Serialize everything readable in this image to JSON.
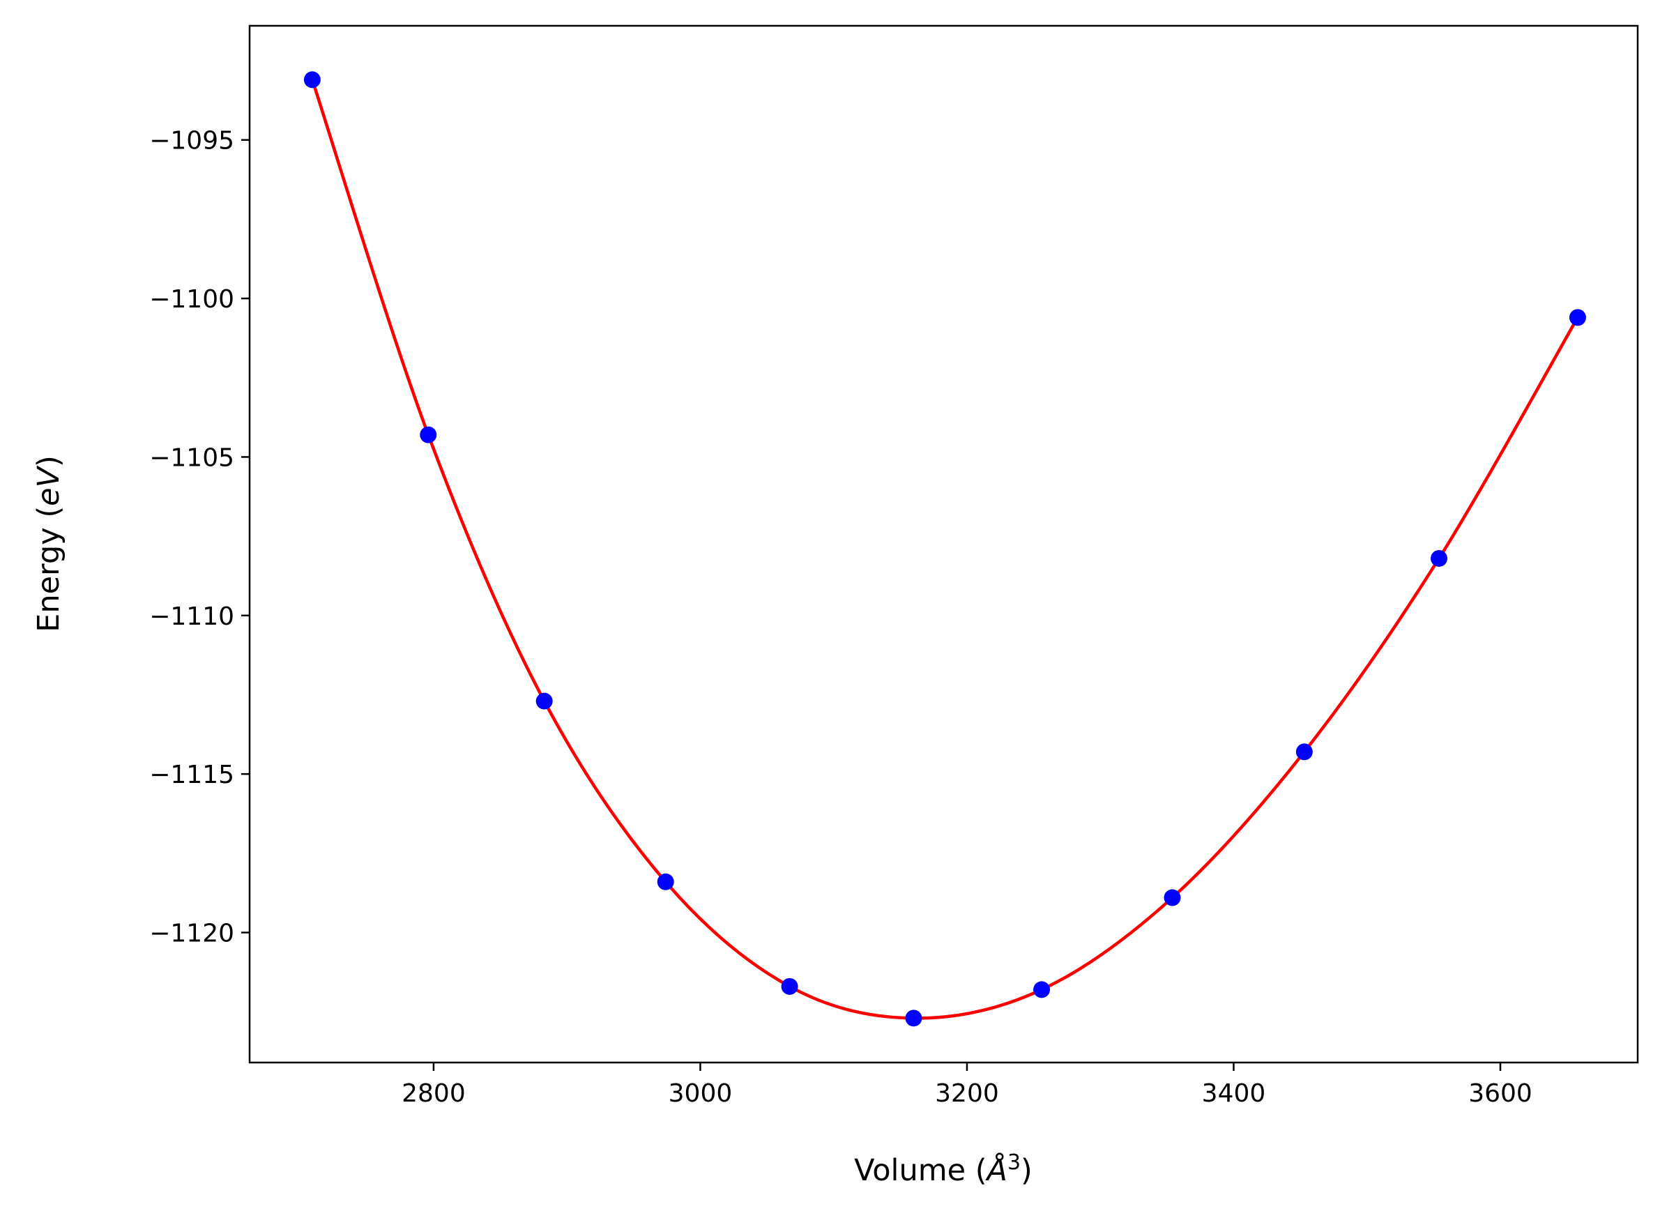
{
  "chart_data": {
    "type": "scatter",
    "title": "",
    "xlabel": "Volume (Å³)",
    "xlabel_parts": {
      "prefix": "Volume (",
      "symbol": "Å",
      "sup": "3",
      "suffix": ")"
    },
    "ylabel": "Energy (eV)",
    "ylabel_parts": {
      "prefix": "Energy (",
      "unit": "eV",
      "suffix": ")"
    },
    "xlim": [
      2662,
      3703
    ],
    "ylim": [
      -1124.1,
      -1091.4
    ],
    "xticks": [
      2800,
      3000,
      3200,
      3400,
      3600
    ],
    "xtick_labels": [
      "2800",
      "3000",
      "3200",
      "3400",
      "3600"
    ],
    "yticks": [
      -1095,
      -1100,
      -1105,
      -1110,
      -1115,
      -1120
    ],
    "ytick_labels": [
      "−1095",
      "−1100",
      "−1105",
      "−1110",
      "−1115",
      "−1120"
    ],
    "grid": false,
    "legend": false,
    "series": [
      {
        "kind": "points",
        "color": "#0000ff",
        "x": [
          2709,
          2796,
          2883,
          2974,
          3067,
          3160,
          3256,
          3354,
          3453,
          3554,
          3658
        ],
        "y": [
          -1093.1,
          -1104.3,
          -1112.7,
          -1118.4,
          -1121.7,
          -1122.7,
          -1121.8,
          -1118.9,
          -1114.3,
          -1108.2,
          -1100.6
        ]
      },
      {
        "kind": "fit-line",
        "color": "#ff0000",
        "x": [
          2709,
          2796,
          2883,
          2974,
          3067,
          3160,
          3256,
          3354,
          3453,
          3554,
          3658
        ],
        "y": [
          -1093.1,
          -1104.3,
          -1112.7,
          -1118.4,
          -1121.7,
          -1122.7,
          -1121.8,
          -1118.9,
          -1114.3,
          -1108.2,
          -1100.6
        ]
      }
    ]
  }
}
